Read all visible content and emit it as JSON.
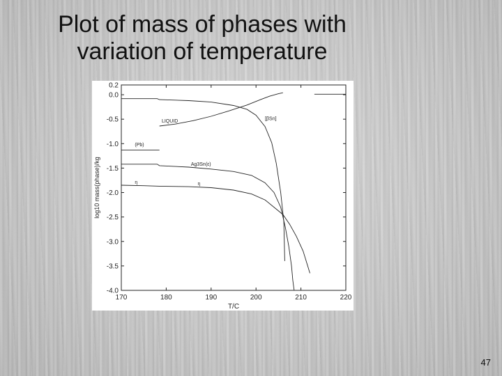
{
  "slide": {
    "title_line1": "Plot of mass of phases with",
    "title_line2": "variation of temperature",
    "page_number": "47"
  },
  "chart_data": {
    "type": "line",
    "title": "",
    "xlabel": "T/C",
    "ylabel": "log10 mass(phase)/kg",
    "xlim": [
      170,
      220
    ],
    "ylim": [
      -4.0,
      0.2
    ],
    "xticks": [
      170,
      180,
      190,
      200,
      210,
      220
    ],
    "xtick_labels": [
      "170",
      "180",
      "190",
      "200",
      "210",
      "220"
    ],
    "yticks": [
      0.2,
      0.0,
      -0.5,
      -1.0,
      -1.5,
      -2.0,
      -2.5,
      -3.0,
      -3.5,
      -4.0
    ],
    "ytick_labels": [
      "0.2",
      "0.0",
      "-0.5",
      "-1.0",
      "-1.5",
      "-2.0",
      "-2.5",
      "-3.0",
      "-3.5",
      "-4.0"
    ],
    "grid": false,
    "line_color": "#222222",
    "series": [
      {
        "name": "LIQUID",
        "x": [
          178.5,
          182,
          186,
          190,
          194,
          198,
          201,
          203,
          205,
          206
        ],
        "y": [
          -0.64,
          -0.6,
          -0.53,
          -0.44,
          -0.33,
          -0.21,
          -0.1,
          -0.03,
          0.02,
          0.04
        ]
      },
      {
        "name": "[βSn]",
        "x": [
          170,
          178,
          178.5,
          185,
          190,
          195,
          198,
          200,
          202,
          203.5,
          204.5,
          205.5,
          206.2,
          206.4
        ],
        "y": [
          -0.08,
          -0.08,
          -0.1,
          -0.12,
          -0.15,
          -0.22,
          -0.3,
          -0.42,
          -0.65,
          -0.98,
          -1.4,
          -2.0,
          -2.6,
          -3.4
        ]
      },
      {
        "name": "[βSn] (upper)",
        "x": [
          213,
          220
        ],
        "y": [
          0.01,
          0.01
        ]
      },
      {
        "name": "(Pb)",
        "x": [
          170,
          178.5
        ],
        "y": [
          -1.13,
          -1.13
        ]
      },
      {
        "name": "Ag3Sn(ε)",
        "x": [
          170,
          178,
          178.5,
          185,
          190,
          195,
          199,
          202,
          204,
          205.5,
          206.5,
          207.3,
          207.9,
          208.2,
          208.5
        ],
        "y": [
          -1.42,
          -1.42,
          -1.45,
          -1.48,
          -1.52,
          -1.57,
          -1.65,
          -1.8,
          -2.0,
          -2.3,
          -2.7,
          -3.1,
          -3.5,
          -3.8,
          -4.0
        ]
      },
      {
        "name": "η",
        "x": [
          170,
          175,
          178.5,
          185,
          190,
          195,
          199,
          202,
          204,
          206,
          207.5,
          209,
          210.5,
          211.5,
          212
        ],
        "y": [
          -1.85,
          -1.86,
          -1.87,
          -1.88,
          -1.9,
          -1.95,
          -2.03,
          -2.15,
          -2.3,
          -2.45,
          -2.65,
          -2.9,
          -3.2,
          -3.5,
          -3.65
        ]
      }
    ],
    "annotations": [
      {
        "text": "LIQUID",
        "x": 179,
        "y": -0.57
      },
      {
        "text": "[βSn]",
        "x": 202,
        "y": -0.52
      },
      {
        "text": "(Pb)",
        "x": 173,
        "y": -1.05
      },
      {
        "text": "Ag3Sn(ε)",
        "x": 185.5,
        "y": -1.45
      },
      {
        "text": "η",
        "x": 173,
        "y": -1.82
      },
      {
        "text": "η",
        "x": 187,
        "y": -1.85
      }
    ]
  }
}
